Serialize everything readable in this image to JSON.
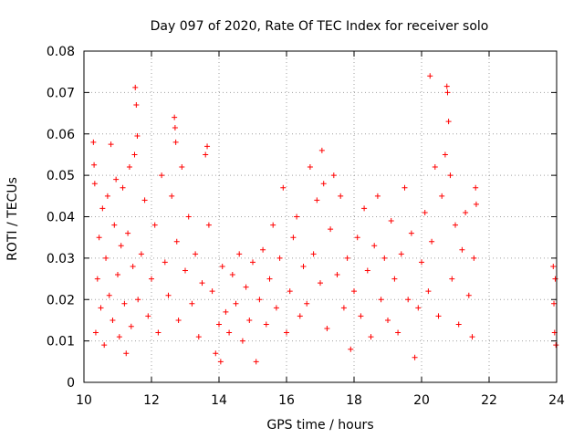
{
  "chart_data": {
    "type": "scatter",
    "title": "Day 097 of 2020, Rate Of TEC Index for receiver solo",
    "xlabel": "GPS time / hours",
    "ylabel": "ROTI / TECUs",
    "xlim": [
      10,
      24
    ],
    "ylim": [
      0,
      0.08
    ],
    "x_ticks": [
      10,
      12,
      14,
      16,
      18,
      20,
      22,
      24
    ],
    "x_tick_labels": [
      "10",
      "12",
      "14",
      "16",
      "18",
      "20",
      "22",
      "24"
    ],
    "y_ticks": [
      0,
      0.01,
      0.02,
      0.03,
      0.04,
      0.05,
      0.06,
      0.07,
      0.08
    ],
    "y_tick_labels": [
      "0",
      "0.01",
      "0.02",
      "0.03",
      "0.04",
      "0.05",
      "0.06",
      "0.07",
      "0.08"
    ],
    "grid": true,
    "marker": "plus",
    "color": "#ff0000",
    "series": [
      {
        "values_note": "representative sample of dense scatter",
        "points": [
          [
            10.28,
            0.058
          ],
          [
            10.3,
            0.0525
          ],
          [
            10.32,
            0.048
          ],
          [
            10.35,
            0.012
          ],
          [
            10.4,
            0.025
          ],
          [
            10.45,
            0.035
          ],
          [
            10.5,
            0.018
          ],
          [
            10.55,
            0.042
          ],
          [
            10.6,
            0.009
          ],
          [
            10.65,
            0.03
          ],
          [
            10.7,
            0.045
          ],
          [
            10.75,
            0.021
          ],
          [
            10.8,
            0.0575
          ],
          [
            10.85,
            0.015
          ],
          [
            10.9,
            0.038
          ],
          [
            10.95,
            0.049
          ],
          [
            11.0,
            0.026
          ],
          [
            11.05,
            0.011
          ],
          [
            11.1,
            0.033
          ],
          [
            11.15,
            0.047
          ],
          [
            11.2,
            0.019
          ],
          [
            11.25,
            0.007
          ],
          [
            11.3,
            0.036
          ],
          [
            11.35,
            0.052
          ],
          [
            11.4,
            0.0135
          ],
          [
            11.45,
            0.028
          ],
          [
            11.5,
            0.055
          ],
          [
            11.52,
            0.0712
          ],
          [
            11.55,
            0.067
          ],
          [
            11.58,
            0.0595
          ],
          [
            11.6,
            0.02
          ],
          [
            11.7,
            0.031
          ],
          [
            11.8,
            0.044
          ],
          [
            11.9,
            0.016
          ],
          [
            12.0,
            0.025
          ],
          [
            12.1,
            0.038
          ],
          [
            12.2,
            0.012
          ],
          [
            12.3,
            0.05
          ],
          [
            12.4,
            0.029
          ],
          [
            12.5,
            0.021
          ],
          [
            12.6,
            0.045
          ],
          [
            12.68,
            0.064
          ],
          [
            12.7,
            0.0615
          ],
          [
            12.72,
            0.058
          ],
          [
            12.75,
            0.034
          ],
          [
            12.8,
            0.015
          ],
          [
            12.9,
            0.052
          ],
          [
            13.0,
            0.027
          ],
          [
            13.1,
            0.04
          ],
          [
            13.2,
            0.019
          ],
          [
            13.3,
            0.031
          ],
          [
            13.4,
            0.011
          ],
          [
            13.5,
            0.024
          ],
          [
            13.6,
            0.055
          ],
          [
            13.65,
            0.057
          ],
          [
            13.7,
            0.038
          ],
          [
            13.8,
            0.022
          ],
          [
            13.9,
            0.007
          ],
          [
            14.0,
            0.014
          ],
          [
            14.05,
            0.005
          ],
          [
            14.1,
            0.028
          ],
          [
            14.2,
            0.017
          ],
          [
            14.3,
            0.012
          ],
          [
            14.4,
            0.026
          ],
          [
            14.5,
            0.019
          ],
          [
            14.6,
            0.031
          ],
          [
            14.7,
            0.01
          ],
          [
            14.8,
            0.023
          ],
          [
            14.9,
            0.015
          ],
          [
            15.0,
            0.029
          ],
          [
            15.1,
            0.005
          ],
          [
            15.2,
            0.02
          ],
          [
            15.3,
            0.032
          ],
          [
            15.4,
            0.014
          ],
          [
            15.5,
            0.025
          ],
          [
            15.6,
            0.038
          ],
          [
            15.7,
            0.018
          ],
          [
            15.8,
            0.03
          ],
          [
            15.9,
            0.047
          ],
          [
            16.0,
            0.012
          ],
          [
            16.1,
            0.022
          ],
          [
            16.2,
            0.035
          ],
          [
            16.3,
            0.04
          ],
          [
            16.4,
            0.016
          ],
          [
            16.5,
            0.028
          ],
          [
            16.6,
            0.019
          ],
          [
            16.7,
            0.052
          ],
          [
            16.8,
            0.031
          ],
          [
            16.9,
            0.044
          ],
          [
            17.0,
            0.024
          ],
          [
            17.05,
            0.056
          ],
          [
            17.1,
            0.048
          ],
          [
            17.2,
            0.013
          ],
          [
            17.3,
            0.037
          ],
          [
            17.4,
            0.05
          ],
          [
            17.5,
            0.026
          ],
          [
            17.6,
            0.045
          ],
          [
            17.7,
            0.018
          ],
          [
            17.8,
            0.03
          ],
          [
            17.9,
            0.008
          ],
          [
            18.0,
            0.022
          ],
          [
            18.1,
            0.035
          ],
          [
            18.2,
            0.016
          ],
          [
            18.3,
            0.042
          ],
          [
            18.4,
            0.027
          ],
          [
            18.5,
            0.011
          ],
          [
            18.6,
            0.033
          ],
          [
            18.7,
            0.045
          ],
          [
            18.8,
            0.02
          ],
          [
            18.9,
            0.03
          ],
          [
            19.0,
            0.015
          ],
          [
            19.1,
            0.039
          ],
          [
            19.2,
            0.025
          ],
          [
            19.3,
            0.012
          ],
          [
            19.4,
            0.031
          ],
          [
            19.5,
            0.047
          ],
          [
            19.6,
            0.02
          ],
          [
            19.7,
            0.036
          ],
          [
            19.8,
            0.006
          ],
          [
            19.9,
            0.018
          ],
          [
            20.0,
            0.029
          ],
          [
            20.1,
            0.041
          ],
          [
            20.2,
            0.022
          ],
          [
            20.25,
            0.074
          ],
          [
            20.3,
            0.034
          ],
          [
            20.4,
            0.052
          ],
          [
            20.5,
            0.016
          ],
          [
            20.6,
            0.045
          ],
          [
            20.7,
            0.055
          ],
          [
            20.75,
            0.0715
          ],
          [
            20.77,
            0.07
          ],
          [
            20.8,
            0.063
          ],
          [
            20.85,
            0.05
          ],
          [
            20.9,
            0.025
          ],
          [
            21.0,
            0.038
          ],
          [
            21.1,
            0.014
          ],
          [
            21.2,
            0.032
          ],
          [
            21.3,
            0.041
          ],
          [
            21.4,
            0.021
          ],
          [
            21.5,
            0.011
          ],
          [
            21.55,
            0.03
          ],
          [
            21.6,
            0.047
          ],
          [
            21.62,
            0.043
          ],
          [
            23.9,
            0.028
          ],
          [
            23.92,
            0.019
          ],
          [
            23.94,
            0.012
          ],
          [
            23.96,
            0.025
          ],
          [
            23.98,
            0.009
          ]
        ]
      }
    ]
  }
}
